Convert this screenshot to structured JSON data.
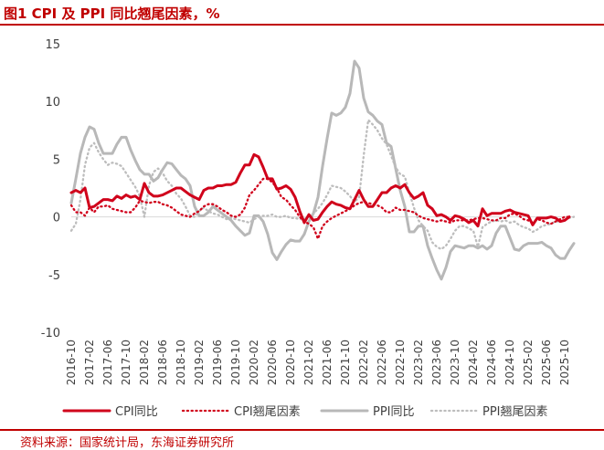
{
  "title": "图1 CPI 及 PPI 同比翘尾因素，%",
  "source": "资料来源：国家统计局，东海证券研究所",
  "chart_data": {
    "type": "line",
    "ylim": [
      -10,
      15
    ],
    "yticks": [
      15,
      10,
      5,
      0,
      -5,
      -10
    ],
    "xticks": [
      "2016-10",
      "2017-02",
      "2017-06",
      "2017-10",
      "2018-02",
      "2018-06",
      "2018-10",
      "2019-02",
      "2019-06",
      "2019-10",
      "2020-02",
      "2020-06",
      "2020-10",
      "2021-02",
      "2021-06",
      "2021-10",
      "2022-02",
      "2022-06",
      "2022-10",
      "2023-02",
      "2023-06",
      "2023-10",
      "2024-02",
      "2024-06",
      "2024-10",
      "2025-02",
      "2025-06",
      "2025-10"
    ],
    "start_month": "2016-10",
    "series": [
      {
        "name": "CPI同比",
        "color": "#d0021b",
        "style": "solid",
        "width": 3,
        "values": [
          2.1,
          2.3,
          2.1,
          2.5,
          0.8,
          0.9,
          1.2,
          1.5,
          1.5,
          1.4,
          1.8,
          1.6,
          1.9,
          1.7,
          1.8,
          1.5,
          2.9,
          2.1,
          1.8,
          1.8,
          1.9,
          2.1,
          2.3,
          2.5,
          2.5,
          2.2,
          1.9,
          1.7,
          1.5,
          2.3,
          2.5,
          2.5,
          2.7,
          2.7,
          2.8,
          2.8,
          3.0,
          3.8,
          4.5,
          4.5,
          5.4,
          5.2,
          4.3,
          3.3,
          3.3,
          2.4,
          2.5,
          2.7,
          2.4,
          1.7,
          0.5,
          -0.5,
          0.2,
          -0.3,
          -0.2,
          0.4,
          0.9,
          1.3,
          1.1,
          1.0,
          0.8,
          0.7,
          1.5,
          2.3,
          1.5,
          0.9,
          0.9,
          1.5,
          2.1,
          2.1,
          2.5,
          2.7,
          2.5,
          2.8,
          2.1,
          1.6,
          1.8,
          2.1,
          1.0,
          0.7,
          0.1,
          0.2,
          0.0,
          -0.3,
          0.1,
          0.0,
          -0.2,
          -0.5,
          -0.3,
          -0.8,
          0.7,
          0.1,
          0.3,
          0.3,
          0.3,
          0.5,
          0.6,
          0.4,
          0.3,
          0.2,
          0.1,
          -0.7,
          -0.1,
          -0.1,
          -0.1,
          0.0,
          -0.1,
          -0.4,
          -0.3,
          0.0
        ]
      },
      {
        "name": "CPI翘尾因素",
        "color": "#d0021b",
        "style": "dot",
        "width": 2.3,
        "values": [
          1.0,
          0.4,
          0.4,
          0.1,
          0.8,
          0.4,
          0.9,
          0.9,
          1.0,
          0.7,
          0.6,
          0.5,
          0.4,
          0.4,
          0.8,
          1.4,
          1.3,
          1.2,
          1.3,
          1.3,
          1.1,
          1.0,
          0.8,
          0.5,
          0.2,
          0.1,
          0.0,
          0.3,
          0.5,
          0.9,
          1.1,
          1.1,
          0.9,
          0.6,
          0.4,
          0.1,
          0.0,
          0.2,
          0.8,
          1.9,
          2.3,
          2.8,
          3.3,
          3.3,
          3.0,
          2.5,
          1.7,
          1.5,
          1.0,
          0.6,
          0.0,
          -0.4,
          -0.6,
          -0.9,
          -1.9,
          -0.8,
          -0.4,
          -0.1,
          0.1,
          0.3,
          0.5,
          0.7,
          1.0,
          1.2,
          1.3,
          1.2,
          1.1,
          1.0,
          0.8,
          0.4,
          0.4,
          0.8,
          0.6,
          0.6,
          0.5,
          0.4,
          0.1,
          -0.1,
          -0.2,
          -0.3,
          -0.4,
          -0.3,
          -0.4,
          -0.5,
          -0.3,
          -0.3,
          -0.3,
          -0.3,
          -0.2,
          -0.1,
          -0.1,
          -0.2,
          -0.3,
          -0.3,
          -0.1,
          -0.1,
          0.2,
          0.3,
          0.1,
          -0.2,
          -0.3,
          -0.5,
          -0.2,
          -0.3,
          -0.5,
          -0.6,
          -0.4,
          -0.2,
          0.0,
          0.0
        ]
      },
      {
        "name": "PPI同比",
        "color": "#b8b8b8",
        "style": "solid",
        "width": 3,
        "values": [
          1.2,
          3.3,
          5.5,
          6.9,
          7.8,
          7.6,
          6.4,
          5.5,
          5.5,
          5.5,
          6.3,
          6.9,
          6.9,
          5.8,
          4.9,
          4.1,
          3.7,
          3.7,
          3.1,
          3.4,
          4.1,
          4.7,
          4.6,
          4.1,
          3.6,
          3.3,
          2.7,
          0.9,
          0.1,
          0.1,
          0.4,
          0.9,
          0.6,
          0.3,
          0.0,
          -0.3,
          -0.8,
          -1.2,
          -1.6,
          -1.4,
          0.1,
          0.1,
          -0.4,
          -1.5,
          -3.1,
          -3.7,
          -3.0,
          -2.4,
          -2.0,
          -2.1,
          -2.1,
          -1.5,
          -0.4,
          0.3,
          1.7,
          4.4,
          6.8,
          9.0,
          8.8,
          9.0,
          9.5,
          10.7,
          13.5,
          12.9,
          10.3,
          9.1,
          8.8,
          8.3,
          8.0,
          6.4,
          6.1,
          4.2,
          2.3,
          0.9,
          -1.3,
          -1.3,
          -0.8,
          -0.8,
          -2.5,
          -3.6,
          -4.6,
          -5.4,
          -4.4,
          -3.0,
          -2.5,
          -2.6,
          -2.7,
          -2.5,
          -2.5,
          -2.7,
          -2.5,
          -2.8,
          -2.5,
          -1.4,
          -0.8,
          -0.8,
          -1.8,
          -2.8,
          -2.9,
          -2.5,
          -2.3,
          -2.3,
          -2.3,
          -2.2,
          -2.5,
          -2.7,
          -3.3,
          -3.6,
          -3.6,
          -2.9,
          -2.3
        ]
      },
      {
        "name": "PPI翘尾因素",
        "color": "#bdbdbd",
        "style": "dot",
        "width": 2.3,
        "values": [
          -1.2,
          -0.6,
          1.5,
          4.5,
          6.0,
          6.4,
          5.6,
          5.0,
          4.5,
          4.7,
          4.6,
          4.4,
          3.8,
          3.2,
          2.6,
          1.8,
          0.0,
          2.7,
          3.9,
          4.2,
          3.8,
          3.1,
          2.7,
          2.0,
          1.6,
          0.9,
          0.1,
          0.0,
          0.5,
          0.8,
          0.5,
          0.3,
          0.2,
          0.0,
          -0.2,
          -0.1,
          -0.2,
          -0.3,
          -0.4,
          -0.5,
          -0.2,
          0.0,
          0.1,
          0.1,
          0.2,
          0.0,
          0.0,
          0.1,
          -0.1,
          -0.1,
          -0.2,
          -0.2,
          0.0,
          0.3,
          0.7,
          1.2,
          1.9,
          2.7,
          2.6,
          2.5,
          2.2,
          1.8,
          1.3,
          1.7,
          5.3,
          8.4,
          8.0,
          7.5,
          6.8,
          6.3,
          5.3,
          4.3,
          3.7,
          3.5,
          2.1,
          0.8,
          -0.3,
          -0.8,
          -1.2,
          -2.2,
          -2.6,
          -2.8,
          -2.5,
          -1.9,
          -1.2,
          -0.8,
          -0.8,
          -1.0,
          -1.2,
          -2.6,
          -0.9,
          -0.6,
          -0.4,
          -0.3,
          -0.4,
          -0.3,
          -0.5,
          -0.4,
          -0.7,
          -0.9,
          -1.0,
          -1.3,
          -1.1,
          -0.8,
          -0.7,
          -0.6,
          -0.4,
          -0.4,
          -0.3,
          -0.1,
          0.0
        ]
      }
    ]
  }
}
